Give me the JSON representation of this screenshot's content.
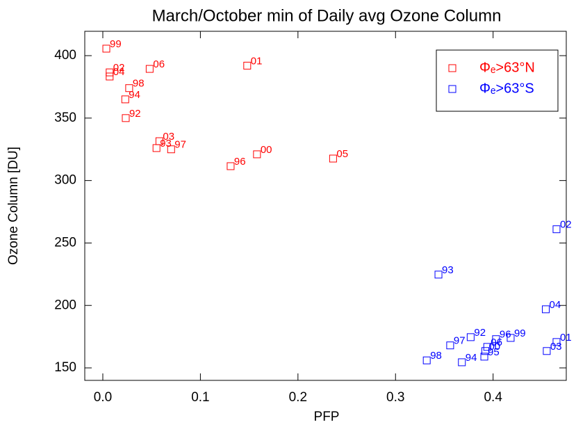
{
  "chart_data": {
    "type": "scatter",
    "title": "March/October min of Daily avg Ozone Column",
    "xlabel": "PFP",
    "ylabel": "Ozone Column [DU]",
    "xlim": [
      -0.0185,
      0.475
    ],
    "ylim": [
      140,
      419.5
    ],
    "xticks": [
      {
        "value": 0,
        "label": "0.0"
      },
      0.1,
      0.2,
      0.3,
      0.4
    ],
    "yticks": [
      150,
      200,
      250,
      300,
      350,
      400
    ],
    "legend": "upper right",
    "series": [
      {
        "name": "Φₑ>63°N",
        "color": "#ff0000",
        "x": [
          0.0036,
          0.007,
          0.007,
          0.048,
          0.148,
          0.027,
          0.023,
          0.0235,
          0.058,
          0.055,
          0.07,
          0.131,
          0.158,
          0.236
        ],
        "values": [
          405.6,
          386.6,
          383.3,
          389.4,
          392,
          374,
          365,
          350,
          331.5,
          326,
          325,
          311.5,
          321,
          317.6
        ],
        "point_labels": [
          "99",
          "02",
          "04",
          "06",
          "01",
          "98",
          "94",
          "92",
          "03",
          "93",
          "97",
          "96",
          "00",
          "05"
        ]
      },
      {
        "name": "Φₑ>63°S",
        "color": "#0000ff",
        "x": [
          0.465,
          0.344,
          0.454,
          0.377,
          0.356,
          0.403,
          0.418,
          0.465,
          0.394,
          0.392,
          0.391,
          0.455,
          0.332,
          0.368
        ],
        "values": [
          261,
          224.7,
          196.9,
          174.6,
          168,
          173,
          174,
          170.7,
          166.8,
          163.5,
          159,
          163.5,
          156,
          154.5
        ],
        "point_labels": [
          "02",
          "93",
          "04",
          "92",
          "97",
          "96",
          "99",
          "01",
          "06",
          "00",
          "95",
          "03",
          "98",
          "94"
        ]
      }
    ]
  }
}
